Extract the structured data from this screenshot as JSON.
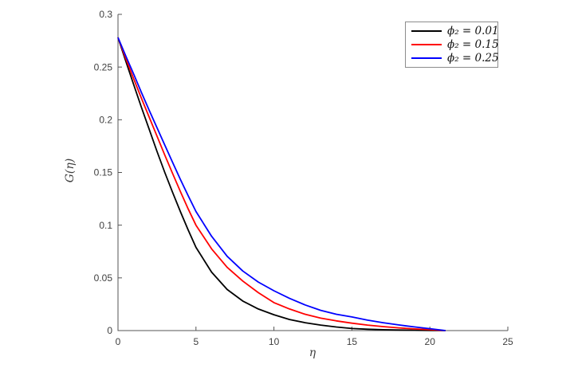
{
  "figure": {
    "background": "#ffffff"
  },
  "axis_style": {
    "line_color": "#545454",
    "tick_label_color": "#3f3f3f"
  },
  "chart_data": {
    "type": "line",
    "title": "",
    "xlabel": "η",
    "ylabel": "G(η)",
    "xlim": [
      0,
      25
    ],
    "ylim": [
      0,
      0.3
    ],
    "xticks": [
      0,
      5,
      10,
      15,
      20,
      25
    ],
    "yticks": [
      0,
      0.05,
      0.1,
      0.15,
      0.2,
      0.25,
      0.3
    ],
    "grid": false,
    "legend_position": "top-right",
    "x": [
      0,
      0.5,
      1,
      1.5,
      2,
      2.5,
      3,
      3.5,
      4,
      4.5,
      5,
      6,
      7,
      8,
      9,
      10,
      11,
      12,
      13,
      14,
      15,
      16,
      17,
      18,
      19,
      20,
      21
    ],
    "series": [
      {
        "id": "phi2-001",
        "name": "ϕ₂ = 0.01",
        "color": "#000000",
        "values": [
          0.278,
          0.2555,
          0.2335,
          0.212,
          0.191,
          0.17,
          0.15,
          0.131,
          0.113,
          0.0955,
          0.079,
          0.0555,
          0.039,
          0.028,
          0.0205,
          0.015,
          0.0105,
          0.0075,
          0.0052,
          0.0034,
          0.002,
          0.0013,
          0.0008,
          0.0005,
          0.0003,
          0.0001,
          0
        ]
      },
      {
        "id": "phi2-015",
        "name": "ϕ₂ = 0.15",
        "color": "#ff0000",
        "values": [
          0.278,
          0.258,
          0.239,
          0.2205,
          0.2025,
          0.1845,
          0.1665,
          0.149,
          0.132,
          0.1155,
          0.1,
          0.0775,
          0.06,
          0.047,
          0.036,
          0.0265,
          0.0205,
          0.0155,
          0.0118,
          0.0092,
          0.007,
          0.0052,
          0.0038,
          0.0026,
          0.0016,
          0.0008,
          0
        ]
      },
      {
        "id": "phi2-025",
        "name": "ϕ₂ = 0.25",
        "color": "#0000ff",
        "values": [
          0.278,
          0.2605,
          0.2435,
          0.226,
          0.209,
          0.1925,
          0.176,
          0.1595,
          0.1435,
          0.128,
          0.113,
          0.0895,
          0.0705,
          0.0565,
          0.046,
          0.0378,
          0.0305,
          0.0243,
          0.0192,
          0.0155,
          0.0129,
          0.0099,
          0.0075,
          0.0054,
          0.0035,
          0.0018,
          0
        ]
      }
    ]
  }
}
